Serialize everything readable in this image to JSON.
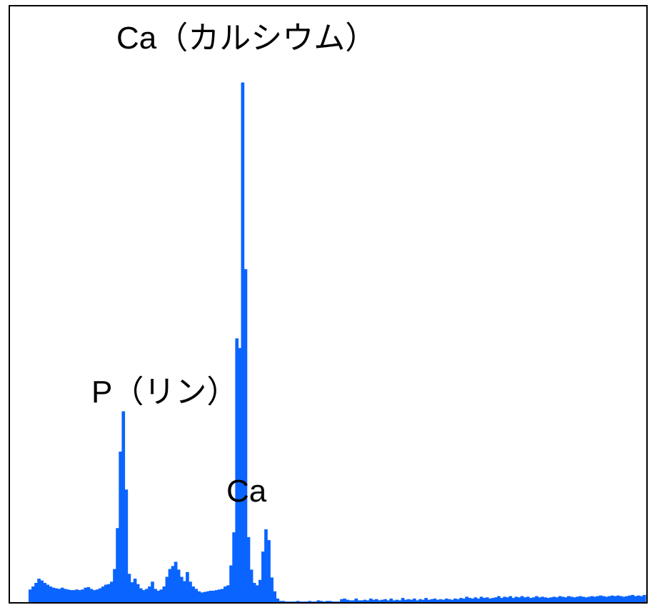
{
  "chart_data": {
    "type": "bar",
    "title": "",
    "xlabel": "",
    "ylabel": "",
    "grid": false,
    "legend": "none",
    "ylim": [
      0,
      100
    ],
    "series_color": "#0A64FF",
    "frame_color": "#000000",
    "values": [
      2.1,
      2.6,
      3.2,
      3.9,
      3.6,
      3.2,
      2.9,
      2.6,
      2.4,
      2.3,
      2.2,
      2.4,
      2.2,
      2.1,
      2.0,
      2.0,
      2.1,
      2.0,
      2.1,
      2.4,
      2.5,
      2.2,
      2.0,
      2.1,
      2.3,
      2.6,
      2.9,
      3.0,
      3.4,
      5.5,
      12.3,
      25.0,
      31.7,
      18.7,
      4.7,
      3.3,
      3.9,
      3.0,
      2.3,
      2.0,
      2.2,
      2.6,
      3.4,
      2.2,
      1.9,
      2.1,
      2.6,
      4.2,
      5.5,
      6.0,
      6.7,
      5.4,
      4.2,
      3.5,
      5.0,
      3.4,
      2.6,
      2.2,
      1.8,
      1.6,
      1.7,
      1.8,
      1.9,
      1.9,
      2.0,
      2.1,
      2.2,
      2.6,
      2.8,
      6.1,
      11.6,
      43.8,
      42.2,
      86.3,
      55.3,
      10.8,
      5.4,
      3.2,
      2.8,
      3.7,
      8.4,
      12.1,
      10.3,
      4.1,
      1.8,
      0.6,
      0.2,
      0.2,
      0.1,
      0.1,
      0.1,
      0.1,
      0.2,
      0.1,
      0.1,
      0.1,
      0.2,
      0.1,
      0.1,
      0.3,
      0.2,
      0.1,
      0.2,
      0.2,
      0.1,
      0.1,
      0.1,
      0.5,
      0.6,
      0.4,
      0.3,
      0.3,
      0.6,
      0.3,
      0.3,
      0.4,
      0.3,
      0.6,
      0.4,
      0.5,
      0.3,
      0.4,
      0.5,
      0.3,
      0.6,
      0.3,
      0.4,
      0.3,
      0.7,
      0.4,
      0.5,
      0.4,
      0.6,
      0.3,
      0.5,
      0.4,
      0.7,
      0.4,
      0.5,
      0.6,
      0.4,
      0.5,
      0.4,
      0.6,
      0.5,
      0.4,
      0.6,
      0.5,
      0.7,
      0.6,
      0.9,
      0.7,
      0.6,
      0.8,
      0.6,
      0.9,
      0.7,
      0.8,
      0.6,
      0.7,
      0.8,
      1.0,
      0.7,
      0.9,
      0.8,
      1.0,
      0.7,
      0.9,
      0.8,
      1.0,
      0.8,
      0.9,
      0.7,
      0.8,
      1.0,
      0.8,
      0.9,
      0.8,
      0.7,
      0.8,
      0.9,
      0.8,
      1.0,
      0.9,
      0.8,
      1.0,
      0.9,
      0.8,
      0.9,
      1.0,
      0.9,
      0.8,
      0.9,
      1.0,
      0.9,
      1.0,
      1.1,
      1.0,
      0.9,
      1.0,
      1.1,
      1.0,
      1.1,
      1.0,
      0.9,
      1.0,
      1.1,
      1.2,
      1.0,
      1.1,
      1.0,
      1.2
    ],
    "annotations": [
      {
        "name": "ca-major-peak-label",
        "text": "Ca（カルシウム）",
        "bin": 73
      },
      {
        "name": "p-peak-label",
        "text": "P（リン）",
        "bin": 32
      },
      {
        "name": "ca-minor-peak-label",
        "text": "Ca",
        "bin": 81
      }
    ]
  }
}
